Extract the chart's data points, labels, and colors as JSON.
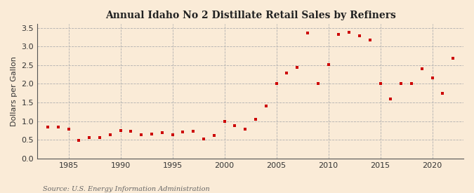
{
  "title": "Annual Idaho No 2 Distillate Retail Sales by Refiners",
  "ylabel": "Dollars per Gallon",
  "source": "Source: U.S. Energy Information Administration",
  "fig_background_color": "#faebd7",
  "plot_background_color": "#faebd7",
  "marker_color": "#cc0000",
  "xlim": [
    1982,
    2023
  ],
  "ylim": [
    0.0,
    3.6
  ],
  "xticks": [
    1985,
    1990,
    1995,
    2000,
    2005,
    2010,
    2015,
    2020
  ],
  "yticks": [
    0.0,
    0.5,
    1.0,
    1.5,
    2.0,
    2.5,
    3.0,
    3.5
  ],
  "years": [
    1983,
    1984,
    1985,
    1986,
    1987,
    1988,
    1989,
    1990,
    1991,
    1992,
    1993,
    1994,
    1995,
    1996,
    1997,
    1998,
    1999,
    2000,
    2001,
    2002,
    2003,
    2004,
    2005,
    2006,
    2007,
    2008,
    2009,
    2010,
    2011,
    2012,
    2013,
    2014,
    2015,
    2016,
    2017,
    2018,
    2019,
    2020,
    2021,
    2022
  ],
  "values": [
    0.84,
    0.84,
    0.79,
    0.49,
    0.56,
    0.56,
    0.63,
    0.75,
    0.73,
    0.64,
    0.65,
    0.7,
    0.63,
    0.72,
    0.73,
    0.52,
    0.61,
    1.0,
    0.88,
    0.78,
    1.05,
    1.4,
    2.0,
    2.3,
    2.44,
    3.37,
    2.0,
    2.52,
    3.33,
    3.38,
    3.28,
    3.18,
    2.01,
    1.59,
    2.01,
    2.0,
    2.41,
    2.15,
    1.74,
    2.69
  ]
}
